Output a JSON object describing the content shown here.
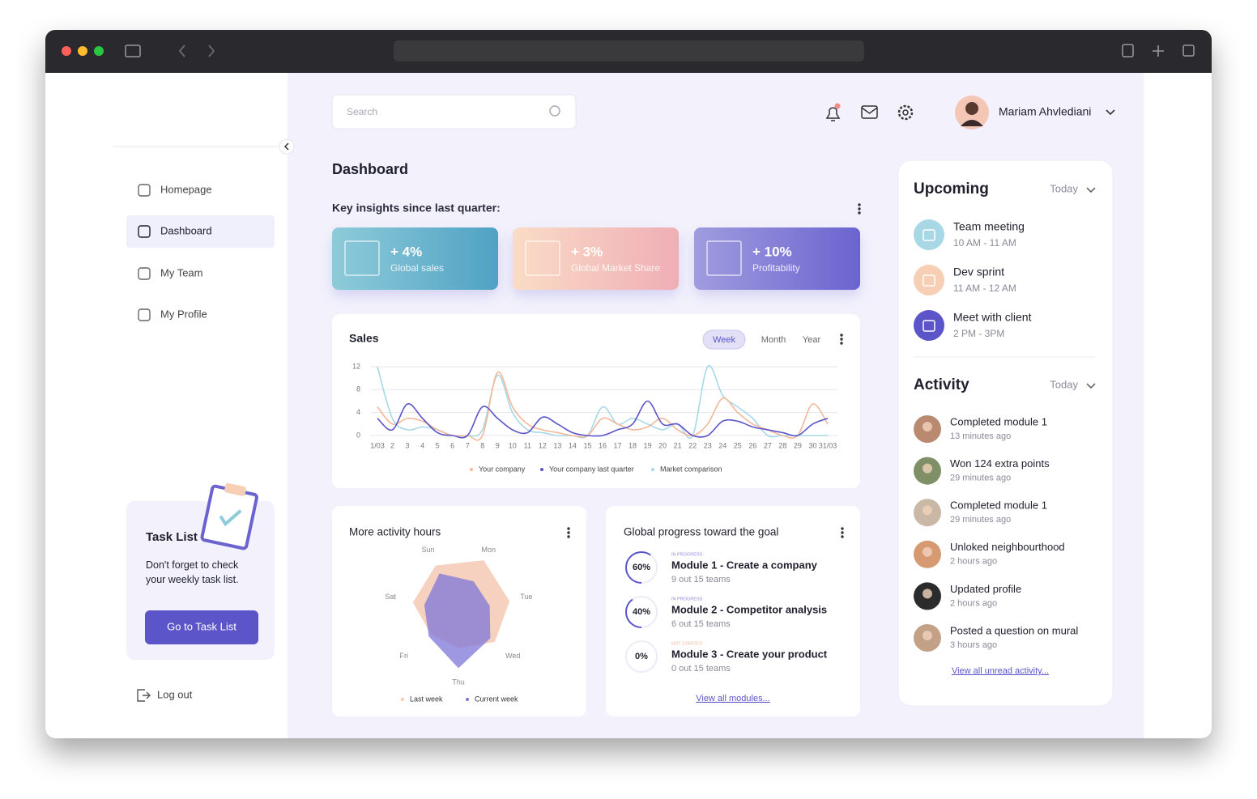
{
  "search": {
    "placeholder": "Search"
  },
  "user": {
    "name": "Mariam Ahvlediani"
  },
  "nav": {
    "items": [
      {
        "label": "Homepage",
        "active": false
      },
      {
        "label": "Dashboard",
        "active": true
      },
      {
        "label": "My Team",
        "active": false
      },
      {
        "label": "My Profile",
        "active": false
      }
    ]
  },
  "task_card": {
    "title": "Task List",
    "text": "Don't forget to check your weekly task list.",
    "button": "Go to Task List"
  },
  "logout": "Log out",
  "page_title": "Dashboard",
  "insights": {
    "title": "Key insights since last quarter:",
    "cards": [
      {
        "value": "+ 4%",
        "label": "Global sales"
      },
      {
        "value": "+ 3%",
        "label": "Global Market Share"
      },
      {
        "value": "+ 10%",
        "label": "Profitability"
      }
    ]
  },
  "sales_chart": {
    "type": "line",
    "title": "Sales",
    "tabs": [
      {
        "label": "Week",
        "active": true
      },
      {
        "label": "Month",
        "active": false
      },
      {
        "label": "Year",
        "active": false
      }
    ],
    "categories": [
      "1/03",
      "2",
      "3",
      "4",
      "5",
      "6",
      "7",
      "8",
      "9",
      "10",
      "11",
      "12",
      "13",
      "14",
      "15",
      "16",
      "17",
      "18",
      "19",
      "20",
      "21",
      "22",
      "23",
      "24",
      "25",
      "26",
      "27",
      "28",
      "29",
      "30",
      "31/03"
    ],
    "ylim": [
      0,
      12
    ],
    "yticks": [
      0,
      4,
      8,
      12
    ],
    "grid": true,
    "series": [
      {
        "name": "Your company",
        "color": "#f2b89a",
        "values": [
          5,
          2,
          3,
          2.5,
          1,
          0,
          0,
          0,
          11,
          5,
          2,
          1,
          0.5,
          0,
          0,
          3,
          2,
          1,
          1.5,
          3,
          1,
          0,
          2,
          6.5,
          4,
          2,
          1,
          0,
          0,
          5.5,
          2
        ]
      },
      {
        "name": "Your company last quarter",
        "color": "#5b55c9",
        "values": [
          3,
          1,
          5.5,
          3,
          0.5,
          0,
          0,
          5,
          3,
          1,
          0.5,
          3.2,
          2,
          0.5,
          0,
          0,
          1,
          2,
          6,
          2,
          2,
          0,
          0,
          2.5,
          2.5,
          1.5,
          1,
          0.5,
          0,
          2,
          3
        ]
      },
      {
        "name": "Market comparison",
        "color": "#a8d8e6",
        "values": [
          12,
          3,
          1,
          1.5,
          1,
          0,
          0,
          1,
          10.5,
          4,
          1,
          0.5,
          0,
          0,
          0,
          5,
          2,
          3,
          2,
          1,
          2,
          0,
          12,
          7,
          5,
          3,
          0,
          0,
          0,
          0,
          0
        ]
      }
    ]
  },
  "radar_chart": {
    "type": "radar",
    "title": "More activity hours",
    "categories": [
      "Sun",
      "Mon",
      "Tue",
      "Wed",
      "Thu",
      "Fri",
      "Sat"
    ],
    "rlim": [
      0,
      10
    ],
    "series": [
      {
        "name": "Last week",
        "color": "#f6c9b4",
        "values": [
          9,
          10,
          9,
          8,
          6,
          6,
          8
        ]
      },
      {
        "name": "Current week",
        "color": "#7d76d8",
        "values": [
          7.5,
          6,
          5.5,
          7,
          9.5,
          6.5,
          6
        ]
      }
    ]
  },
  "progress": {
    "title": "Global progress toward the goal",
    "modules": [
      {
        "status": "IN PROGRESS",
        "percent": {
          "value": 60,
          "label": "60%"
        },
        "name": "Module 1 - Create a company",
        "teams": "9 out 15 teams"
      },
      {
        "status": "IN PROGRESS",
        "percent": {
          "value": 40,
          "label": "40%"
        },
        "name": "Module 2 - Competitor analysis",
        "teams": "6 out 15 teams"
      },
      {
        "status": "NOT STARTED",
        "percent": {
          "value": 0,
          "label": "0%"
        },
        "name": "Module 3 - Create your product",
        "teams": "0 out 15 teams"
      }
    ],
    "link": "View all modules..."
  },
  "upcoming": {
    "title": "Upcoming",
    "filter": "Today",
    "events": [
      {
        "name": "Team meeting",
        "time": "10 AM - 11 AM",
        "color": "#a8d8e6"
      },
      {
        "name": "Dev sprint",
        "time": "11 AM - 12 AM",
        "color": "#f6cfb5"
      },
      {
        "name": "Meet with client",
        "time": "2 PM - 3PM",
        "color": "#5b55c9"
      }
    ]
  },
  "activity": {
    "title": "Activity",
    "filter": "Today",
    "items": [
      {
        "text": "Completed module 1",
        "time": "13 minutes ago"
      },
      {
        "text": "Won 124 extra points",
        "time": "29 minutes ago"
      },
      {
        "text": "Completed module 1",
        "time": "29 minutes ago"
      },
      {
        "text": "Unloked neighbourthood",
        "time": "2 hours ago"
      },
      {
        "text": "Updated profile",
        "time": "2 hours ago"
      },
      {
        "text": "Posted a question on mural",
        "time": "3 hours ago"
      }
    ],
    "link": "View all unread activity..."
  }
}
